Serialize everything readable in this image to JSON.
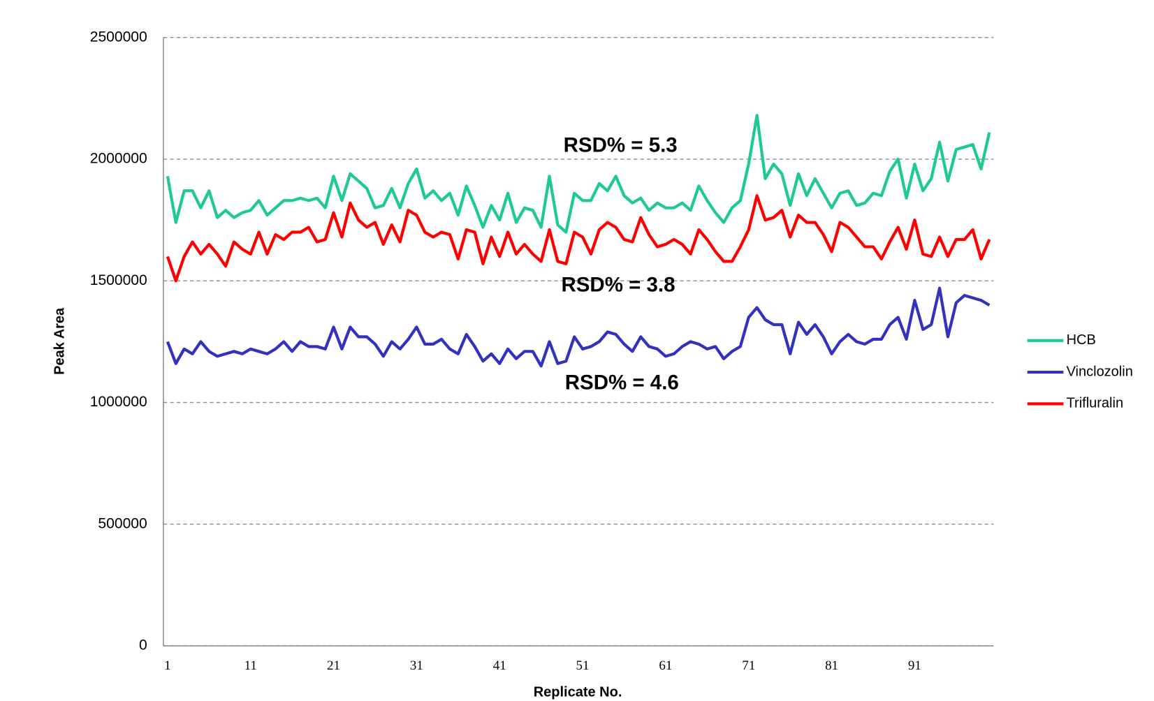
{
  "chart_data": {
    "type": "line",
    "x_label": "Replicate No.",
    "y_label": "Peak Area",
    "annotations": [
      "RSD% = 5.3",
      "RSD% = 3.8",
      "RSD% = 4.6"
    ],
    "categories": [
      1,
      null,
      null,
      null,
      null,
      null,
      null,
      null,
      null,
      null,
      11,
      null,
      null,
      null,
      null,
      null,
      null,
      null,
      null,
      null,
      21,
      null,
      null,
      null,
      null,
      null,
      null,
      null,
      null,
      null,
      31,
      null,
      null,
      null,
      null,
      null,
      null,
      null,
      null,
      null,
      41,
      null,
      null,
      null,
      null,
      null,
      null,
      null,
      null,
      null,
      51,
      null,
      null,
      null,
      null,
      null,
      null,
      null,
      null,
      null,
      61,
      null,
      null,
      null,
      null,
      null,
      null,
      null,
      null,
      null,
      71,
      null,
      null,
      null,
      null,
      null,
      null,
      null,
      null,
      null,
      81,
      null,
      null,
      null,
      null,
      null,
      null,
      null,
      null,
      null,
      91,
      null,
      null,
      null,
      null,
      null,
      null,
      null,
      null,
      null
    ],
    "series": [
      {
        "name": "HCB",
        "color": "#1fca8f",
        "values": [
          1930000,
          1740000,
          1870000,
          1870000,
          1800000,
          1870000,
          1760000,
          1790000,
          1760000,
          1780000,
          1790000,
          1830000,
          1770000,
          1800000,
          1830000,
          1830000,
          1840000,
          1830000,
          1840000,
          1800000,
          1930000,
          1830000,
          1940000,
          1910000,
          1880000,
          1800000,
          1810000,
          1880000,
          1800000,
          1900000,
          1960000,
          1840000,
          1870000,
          1830000,
          1860000,
          1770000,
          1890000,
          1810000,
          1720000,
          1810000,
          1750000,
          1860000,
          1740000,
          1800000,
          1790000,
          1720000,
          1930000,
          1730000,
          1700000,
          1860000,
          1830000,
          1830000,
          1900000,
          1870000,
          1930000,
          1850000,
          1820000,
          1840000,
          1790000,
          1820000,
          1800000,
          1800000,
          1820000,
          1790000,
          1890000,
          1830000,
          1780000,
          1740000,
          1800000,
          1830000,
          1980000,
          2180000,
          1920000,
          1980000,
          1940000,
          1810000,
          1940000,
          1850000,
          1920000,
          1860000,
          1800000,
          1860000,
          1870000,
          1810000,
          1820000,
          1860000,
          1850000,
          1950000,
          2000000,
          1840000,
          1980000,
          1870000,
          1920000,
          2070000,
          1910000,
          2040000,
          2050000,
          2060000,
          1960000,
          2110000
        ]
      },
      {
        "name": "Vinclozolin",
        "color": "#3232c0",
        "values": [
          1250000,
          1160000,
          1220000,
          1200000,
          1250000,
          1210000,
          1190000,
          1200000,
          1210000,
          1200000,
          1220000,
          1210000,
          1200000,
          1220000,
          1250000,
          1210000,
          1250000,
          1230000,
          1230000,
          1220000,
          1310000,
          1220000,
          1310000,
          1270000,
          1270000,
          1240000,
          1190000,
          1250000,
          1220000,
          1260000,
          1310000,
          1240000,
          1240000,
          1260000,
          1220000,
          1200000,
          1280000,
          1230000,
          1170000,
          1200000,
          1160000,
          1220000,
          1180000,
          1210000,
          1210000,
          1150000,
          1250000,
          1160000,
          1170000,
          1270000,
          1220000,
          1230000,
          1250000,
          1290000,
          1280000,
          1240000,
          1210000,
          1270000,
          1230000,
          1220000,
          1190000,
          1200000,
          1230000,
          1250000,
          1240000,
          1220000,
          1230000,
          1180000,
          1210000,
          1230000,
          1350000,
          1390000,
          1340000,
          1320000,
          1320000,
          1200000,
          1330000,
          1280000,
          1320000,
          1270000,
          1200000,
          1250000,
          1280000,
          1250000,
          1240000,
          1260000,
          1260000,
          1320000,
          1350000,
          1260000,
          1420000,
          1300000,
          1320000,
          1470000,
          1270000,
          1410000,
          1440000,
          1430000,
          1420000,
          1400000
        ]
      },
      {
        "name": "Trifluralin",
        "color": "#ff0000",
        "values": [
          1600000,
          1500000,
          1600000,
          1660000,
          1610000,
          1650000,
          1610000,
          1560000,
          1660000,
          1630000,
          1610000,
          1700000,
          1610000,
          1690000,
          1670000,
          1700000,
          1700000,
          1720000,
          1660000,
          1670000,
          1780000,
          1680000,
          1820000,
          1750000,
          1720000,
          1740000,
          1650000,
          1730000,
          1660000,
          1790000,
          1770000,
          1700000,
          1680000,
          1700000,
          1690000,
          1590000,
          1710000,
          1700000,
          1570000,
          1680000,
          1600000,
          1700000,
          1610000,
          1650000,
          1610000,
          1580000,
          1710000,
          1580000,
          1570000,
          1700000,
          1680000,
          1610000,
          1710000,
          1740000,
          1720000,
          1670000,
          1660000,
          1760000,
          1690000,
          1640000,
          1650000,
          1670000,
          1650000,
          1610000,
          1710000,
          1670000,
          1620000,
          1580000,
          1580000,
          1640000,
          1710000,
          1850000,
          1750000,
          1760000,
          1790000,
          1680000,
          1770000,
          1740000,
          1740000,
          1690000,
          1620000,
          1740000,
          1720000,
          1680000,
          1640000,
          1640000,
          1590000,
          1660000,
          1720000,
          1630000,
          1750000,
          1610000,
          1600000,
          1680000,
          1600000,
          1670000,
          1670000,
          1710000,
          1590000,
          1670000
        ]
      }
    ],
    "ylim": [
      0,
      2500000
    ],
    "yticks": [
      0,
      500000,
      1000000,
      1500000,
      2000000,
      2500000
    ],
    "grid": true,
    "legend": "right"
  }
}
